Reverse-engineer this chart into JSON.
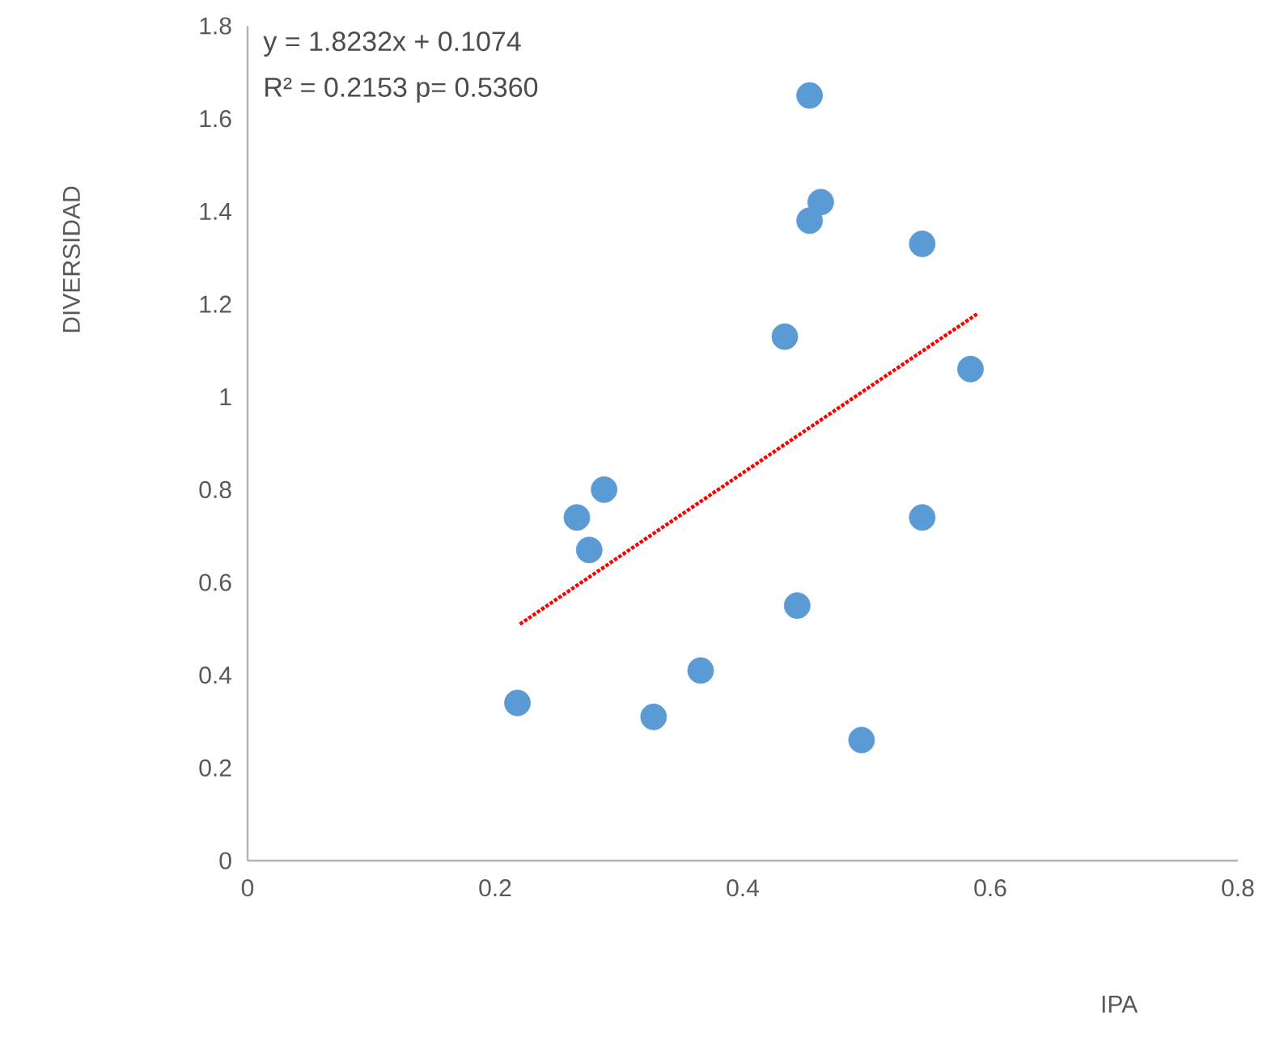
{
  "chart_data": {
    "type": "scatter",
    "xlabel": "IPA",
    "ylabel": "DIVERSIDAD",
    "annotations": [
      "y = 1.8232x + 0.1074",
      "R² = 0.2153 p= 0.5360"
    ],
    "xlim": [
      0,
      0.8
    ],
    "xticks": [
      0,
      0.2,
      0.4,
      0.6,
      0.8
    ],
    "ylim": [
      0,
      1.8
    ],
    "yticks": [
      0,
      0.2,
      0.4,
      0.6,
      0.8,
      1,
      1.2,
      1.4,
      1.6,
      1.8
    ],
    "grid": false,
    "series": [
      {
        "color": "#5b9bd5",
        "marker": "circle",
        "x": [
          0.218,
          0.266,
          0.276,
          0.288,
          0.328,
          0.366,
          0.434,
          0.444,
          0.454,
          0.454,
          0.463,
          0.496,
          0.545,
          0.545,
          0.584
        ],
        "values": [
          0.34,
          0.74,
          0.67,
          0.8,
          0.31,
          0.41,
          1.13,
          0.55,
          1.65,
          1.38,
          1.42,
          0.26,
          1.33,
          0.74,
          1.06
        ]
      },
      {
        "type": "line",
        "color": "#ff0000",
        "line_style": "dotted",
        "marker": "none",
        "x": [
          0.22,
          0.59
        ],
        "values": [
          0.51,
          1.18
        ]
      }
    ]
  }
}
